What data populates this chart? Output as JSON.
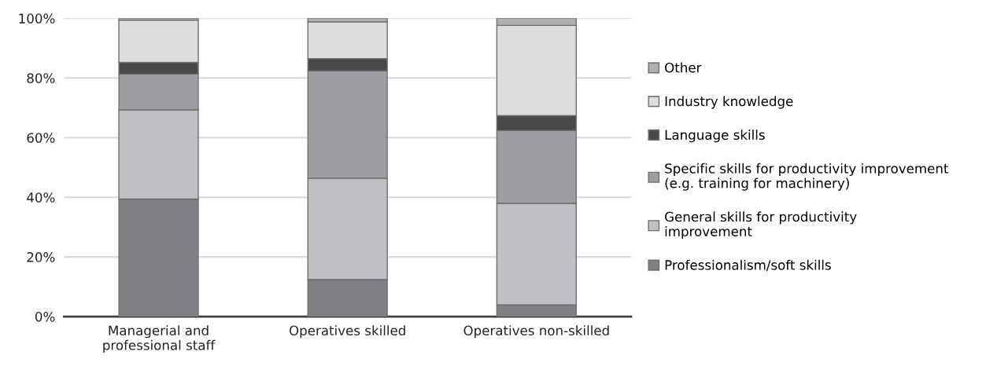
{
  "chart_data": {
    "type": "bar",
    "stacked": true,
    "categories": [
      "Managerial and\nprofessional staff",
      "Operatives skilled",
      "Operatives non-skilled"
    ],
    "series": [
      {
        "name": "Professionalism/soft skills",
        "color": "#7f8084",
        "values": [
          39.4,
          12.4,
          3.9
        ]
      },
      {
        "name": "General skills for productivity\nimprovement",
        "color": "#bfc0c4",
        "values": [
          29.9,
          34.0,
          34.1
        ]
      },
      {
        "name": "Specific skills for productivity improvement\n(e.g. training for machinery)",
        "color": "#9d9ea2",
        "values": [
          12.0,
          36.0,
          24.4
        ]
      },
      {
        "name": "Language skills",
        "color": "#48494b",
        "values": [
          3.9,
          4.1,
          5.0
        ]
      },
      {
        "name": "Industry knowledge",
        "color": "#dcdddf",
        "values": [
          14.2,
          12.3,
          30.2
        ]
      },
      {
        "name": "Other",
        "color": "#aeafb1",
        "values": [
          0.6,
          1.2,
          2.4
        ]
      }
    ],
    "ylim": [
      0,
      100
    ],
    "yticks": [
      {
        "value": 0,
        "label": "0%"
      },
      {
        "value": 20,
        "label": "20%"
      },
      {
        "value": 40,
        "label": "40%"
      },
      {
        "value": 60,
        "label": "60%"
      },
      {
        "value": 80,
        "label": "80%"
      },
      {
        "value": 100,
        "label": "100%"
      }
    ],
    "grid": "y",
    "legend": "right"
  }
}
